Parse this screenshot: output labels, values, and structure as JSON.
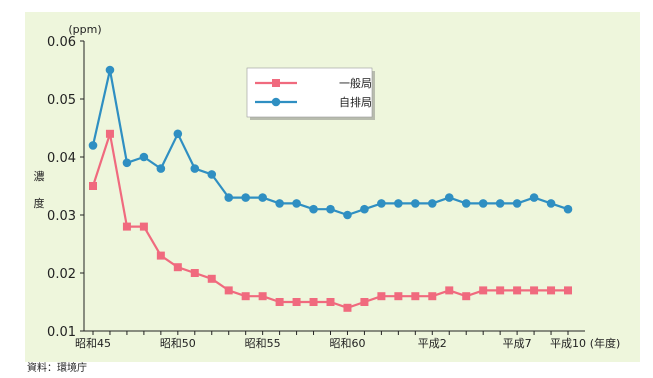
{
  "chart_data": {
    "type": "line",
    "unit_label": "(ppm)",
    "ylabel": "濃度",
    "xunit_label": "(年度)",
    "ylim": [
      0.01,
      0.06
    ],
    "yticks": [
      "0.06",
      "0.05",
      "0.04",
      "0.03",
      "0.02",
      "0.01"
    ],
    "x_ticks": [
      {
        "index": 0,
        "label": "昭和45"
      },
      {
        "index": 5,
        "label": "昭和50"
      },
      {
        "index": 10,
        "label": "昭和55"
      },
      {
        "index": 15,
        "label": "昭和60"
      },
      {
        "index": 20,
        "label": "平成2"
      },
      {
        "index": 25,
        "label": "平成7"
      },
      {
        "index": 28,
        "label": "平成10"
      }
    ],
    "x": [
      "昭和45",
      "昭和46",
      "昭和47",
      "昭和48",
      "昭和49",
      "昭和50",
      "昭和51",
      "昭和52",
      "昭和53",
      "昭和54",
      "昭和55",
      "昭和56",
      "昭和57",
      "昭和58",
      "昭和59",
      "昭和60",
      "昭和61",
      "昭和62",
      "昭和63",
      "平成元",
      "平成2",
      "平成3",
      "平成4",
      "平成5",
      "平成6",
      "平成7",
      "平成8",
      "平成9",
      "平成10"
    ],
    "series": [
      {
        "name": "一般局",
        "color": "#f06a7e",
        "marker": "square",
        "values": [
          0.035,
          0.044,
          0.028,
          0.028,
          0.023,
          0.021,
          0.02,
          0.019,
          0.017,
          0.016,
          0.016,
          0.015,
          0.015,
          0.015,
          0.015,
          0.014,
          0.015,
          0.016,
          0.016,
          0.016,
          0.016,
          0.017,
          0.016,
          0.017,
          0.017,
          0.017,
          0.017,
          0.017,
          0.017
        ]
      },
      {
        "name": "自排局",
        "color": "#2f8fc2",
        "marker": "circle",
        "values": [
          0.042,
          0.055,
          0.039,
          0.04,
          0.038,
          0.044,
          0.038,
          0.037,
          0.033,
          0.033,
          0.033,
          0.032,
          0.032,
          0.031,
          0.031,
          0.03,
          0.031,
          0.032,
          0.032,
          0.032,
          0.032,
          0.033,
          0.032,
          0.032,
          0.032,
          0.032,
          0.033,
          0.032,
          0.031
        ]
      }
    ],
    "legend_position": "top-center",
    "grid": false
  },
  "source_note": "資料：環境庁"
}
